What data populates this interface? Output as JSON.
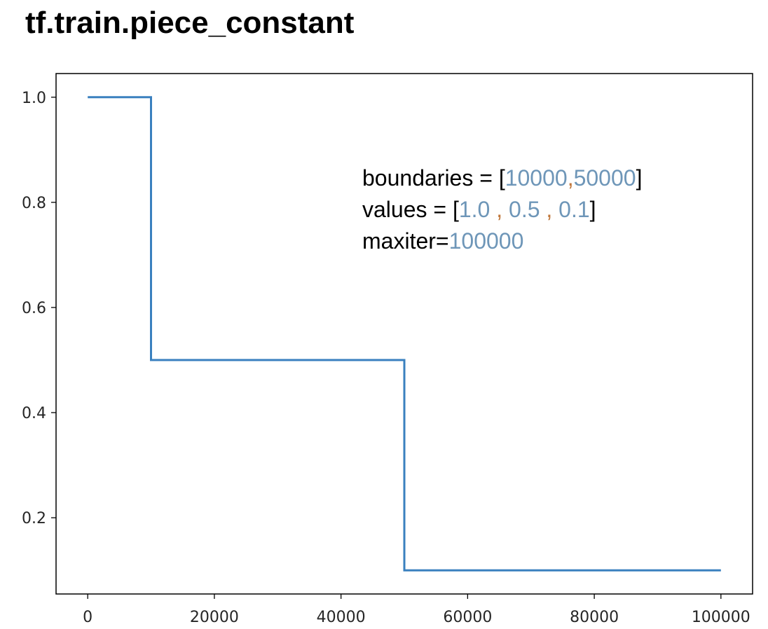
{
  "title": "tf.train.piece_constant",
  "colors": {
    "line": "#3a80bf",
    "number": "#6e96b8",
    "separator": "#c0773b",
    "text": "#000000"
  },
  "annotation": {
    "line1": {
      "prefix": "boundaries = [",
      "n1": "10000",
      "sep1": ",",
      "n2": "50000",
      "suffix": "]"
    },
    "line2": {
      "prefix": "values = [",
      "n1": "1.0",
      "sep1": " , ",
      "n2": "0.5",
      "sep2": " , ",
      "n3": "0.1",
      "suffix": "]"
    },
    "line3": {
      "prefix": "maxiter=",
      "n1": "100000"
    }
  },
  "chart_data": {
    "type": "line",
    "step": true,
    "x": [
      0,
      10000,
      10000,
      50000,
      50000,
      100000
    ],
    "y": [
      1.0,
      1.0,
      0.5,
      0.5,
      0.1,
      0.1
    ],
    "xlim": [
      -5000,
      105000
    ],
    "ylim": [
      0.055,
      1.045
    ],
    "xticks": [
      0,
      20000,
      40000,
      60000,
      80000,
      100000
    ],
    "xtick_labels": [
      "0",
      "20000",
      "40000",
      "60000",
      "80000",
      "100000"
    ],
    "yticks": [
      0.2,
      0.4,
      0.6,
      0.8,
      1.0
    ],
    "ytick_labels": [
      "0.2",
      "0.4",
      "0.6",
      "0.8",
      "1.0"
    ],
    "grid": false,
    "legend": false
  }
}
